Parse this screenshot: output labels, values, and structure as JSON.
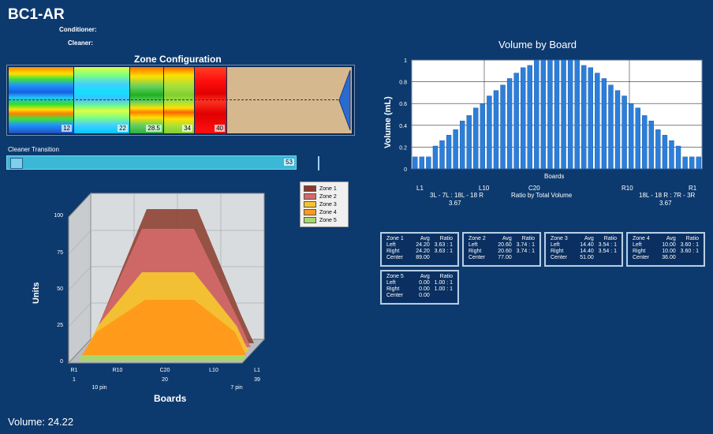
{
  "app": {
    "title": "BC1-AR",
    "conditioner_label": "Conditioner:",
    "cleaner_label": "Cleaner:"
  },
  "zone_config": {
    "title": "Zone Configuration",
    "zones": [
      {
        "end": "12",
        "palette": "rainbow"
      },
      {
        "end": "22",
        "palette": "cyan"
      },
      {
        "end": "28.5",
        "palette": "green"
      },
      {
        "end": "34",
        "palette": "yellowgreen"
      },
      {
        "end": "40",
        "palette": "red"
      }
    ],
    "empty_color": "#d6b88e"
  },
  "cleaner_transition": {
    "label": "Cleaner Transition",
    "value": "53"
  },
  "chart3d": {
    "legend": [
      "Zone 1",
      "Zone 2",
      "Zone 3",
      "Zone 4",
      "Zone 5"
    ],
    "yaxis_label": "Units",
    "xaxis_label": "Boards",
    "yticks": [
      "100",
      "75",
      "50",
      "25",
      "0"
    ],
    "xticks": [
      "R1",
      "R10",
      "C20",
      "L10",
      "L1"
    ],
    "xnums": [
      "1",
      "20",
      "39"
    ],
    "pin_left": "10 pin",
    "pin_right": "7 pin"
  },
  "volume": {
    "label": "Volume: 24.22"
  },
  "chart_data": {
    "type": "bar",
    "title": "Volume by Board",
    "ylabel": "Volume (mL)",
    "xlabel": "Boards",
    "ylim": [
      0,
      1
    ],
    "yticks": [
      "0",
      "0.2",
      "0.4",
      "0.6",
      "0.8",
      "1"
    ],
    "xtick_labels": [
      "L1",
      "L10",
      "C20",
      "R10",
      "R1"
    ],
    "values": [
      0.11,
      0.11,
      0.11,
      0.21,
      0.26,
      0.31,
      0.36,
      0.44,
      0.49,
      0.56,
      0.6,
      0.67,
      0.72,
      0.77,
      0.83,
      0.88,
      0.93,
      0.95,
      1.0,
      1.0,
      1.0,
      1.0,
      1.0,
      1.0,
      1.0,
      0.95,
      0.93,
      0.88,
      0.83,
      0.77,
      0.72,
      0.67,
      0.6,
      0.56,
      0.49,
      0.44,
      0.36,
      0.31,
      0.26,
      0.21,
      0.11,
      0.11,
      0.11
    ],
    "notes": {
      "left": "3L - 7L : 18L - 18 R",
      "left_val": "3.67",
      "center": "Ratio by Total Volume",
      "right": "18L - 18 R : 7R - 3R",
      "right_val": "3.67"
    }
  },
  "summaries": [
    {
      "zone": "Zone 1",
      "h_avg": "Avg",
      "h_ratio": "Ratio",
      "rows": [
        [
          "Left",
          "24.20",
          "3.63 : 1"
        ],
        [
          "Right",
          "24.20",
          "3.63 : 1"
        ],
        [
          "Center",
          "89.00",
          ""
        ]
      ]
    },
    {
      "zone": "Zone 2",
      "h_avg": "Avg",
      "h_ratio": "Ratio",
      "rows": [
        [
          "Left",
          "20.60",
          "3.74 : 1"
        ],
        [
          "Right",
          "20.60",
          "3.74 : 1"
        ],
        [
          "Center",
          "77.00",
          ""
        ]
      ]
    },
    {
      "zone": "Zone 3",
      "h_avg": "Avg",
      "h_ratio": "Ratio",
      "rows": [
        [
          "Left",
          "14.40",
          "3.54 : 1"
        ],
        [
          "Right",
          "14.40",
          "3.54 : 1"
        ],
        [
          "Center",
          "51.00",
          ""
        ]
      ]
    },
    {
      "zone": "Zone 4",
      "h_avg": "Avg",
      "h_ratio": "Ratio",
      "rows": [
        [
          "Left",
          "10.00",
          "3.60 : 1"
        ],
        [
          "Right",
          "10.00",
          "3.60 : 1"
        ],
        [
          "Center",
          "36.00",
          ""
        ]
      ]
    },
    {
      "zone": "Zone 5",
      "h_avg": "Avg",
      "h_ratio": "Ratio",
      "rows": [
        [
          "Left",
          "0.00",
          "1.00 : 1"
        ],
        [
          "Right",
          "0.00",
          "1.00 : 1"
        ],
        [
          "Center",
          "0.00",
          ""
        ]
      ]
    }
  ],
  "colors": {
    "bar": "#2b7fd9",
    "zone1": "#8b3a2a",
    "zone2": "#d46a6a",
    "zone3": "#f4c430",
    "zone4": "#ff9a1a",
    "zone5": "#a6d86a"
  }
}
